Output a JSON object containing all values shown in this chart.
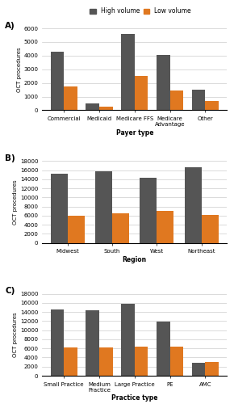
{
  "panel_A": {
    "categories": [
      "Commercial",
      "Medicaid",
      "Medicare FFS",
      "Medicare\nAdvantage",
      "Other"
    ],
    "high_volume": [
      4300,
      500,
      5600,
      4050,
      1500
    ],
    "low_volume": [
      1750,
      280,
      2500,
      1450,
      650
    ],
    "xlabel": "Payer type",
    "ylabel": "OCT procedures",
    "ylim": [
      0,
      6000
    ],
    "yticks": [
      0,
      1000,
      2000,
      3000,
      4000,
      5000,
      6000
    ]
  },
  "panel_B": {
    "categories": [
      "Midwest",
      "South",
      "West",
      "Northeast"
    ],
    "high_volume": [
      15200,
      15800,
      14300,
      16600
    ],
    "low_volume": [
      6050,
      6600,
      7000,
      6200
    ],
    "xlabel": "Region",
    "ylabel": "OCT procedures",
    "ylim": [
      0,
      18000
    ],
    "yticks": [
      0,
      2000,
      4000,
      6000,
      8000,
      10000,
      12000,
      14000,
      16000,
      18000
    ]
  },
  "panel_C": {
    "categories": [
      "Small Practice",
      "Medium\nPractice",
      "Large Practice",
      "PE",
      "AMC"
    ],
    "high_volume": [
      14500,
      14400,
      15800,
      11900,
      2900
    ],
    "low_volume": [
      6200,
      6200,
      6400,
      6400,
      3100
    ],
    "xlabel": "Practice type",
    "ylabel": "OCT procedures",
    "ylim": [
      0,
      18000
    ],
    "yticks": [
      0,
      2000,
      4000,
      6000,
      8000,
      10000,
      12000,
      14000,
      16000,
      18000
    ]
  },
  "color_high": "#555555",
  "color_low": "#E07820",
  "bar_width": 0.38,
  "legend_labels": [
    "High volume",
    "Low volume"
  ]
}
